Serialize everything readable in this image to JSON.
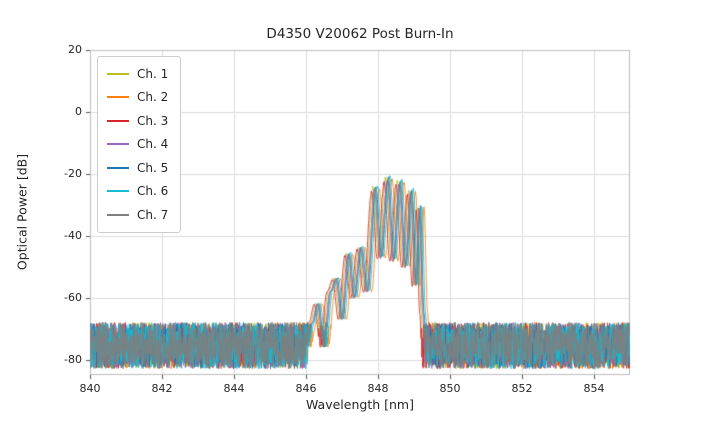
{
  "chart_data": {
    "type": "line",
    "title": "D4350 V20062 Post Burn-In",
    "xlabel": "Wavelength [nm]",
    "ylabel": "Optical Power [dB]",
    "xlim": [
      840,
      855
    ],
    "ylim": [
      -85,
      20
    ],
    "x_ticks": [
      840,
      842,
      844,
      846,
      848,
      850,
      852,
      854
    ],
    "y_ticks": [
      20,
      0,
      -20,
      -40,
      -60,
      -80
    ],
    "grid": true,
    "legend_position": "upper left",
    "noise_floor": {
      "max_dB": -68,
      "min_dB": -83
    },
    "spectrum_envelope": [
      [
        846.0,
        -76
      ],
      [
        846.18,
        -68
      ],
      [
        846.33,
        -62
      ],
      [
        846.5,
        -76
      ],
      [
        846.68,
        -58
      ],
      [
        846.84,
        -54
      ],
      [
        847.0,
        -67
      ],
      [
        847.18,
        -46
      ],
      [
        847.34,
        -60
      ],
      [
        847.52,
        -44
      ],
      [
        847.7,
        -58
      ],
      [
        847.92,
        -25
      ],
      [
        848.08,
        -47
      ],
      [
        848.27,
        -22
      ],
      [
        848.43,
        -48
      ],
      [
        848.6,
        -23
      ],
      [
        848.76,
        -50
      ],
      [
        848.92,
        -26
      ],
      [
        849.05,
        -56
      ],
      [
        849.16,
        -31
      ],
      [
        849.26,
        -65
      ],
      [
        849.33,
        -84
      ]
    ],
    "series": [
      {
        "name": "Ch. 1",
        "color": "#bcbd22",
        "wavelength_offset_nm": -0.06,
        "peak_delta_dB": 0.5
      },
      {
        "name": "Ch. 2",
        "color": "#ff7f0e",
        "wavelength_offset_nm": 0.12,
        "peak_delta_dB": 0.0
      },
      {
        "name": "Ch. 3",
        "color": "#d62728",
        "wavelength_offset_nm": -0.1,
        "peak_delta_dB": -1.0
      },
      {
        "name": "Ch. 4",
        "color": "#9467bd",
        "wavelength_offset_nm": -0.02,
        "peak_delta_dB": -0.5
      },
      {
        "name": "Ch. 5",
        "color": "#1f77b4",
        "wavelength_offset_nm": 0.02,
        "peak_delta_dB": 0.5
      },
      {
        "name": "Ch. 6",
        "color": "#17becf",
        "wavelength_offset_nm": 0.06,
        "peak_delta_dB": 1.0
      },
      {
        "name": "Ch. 7",
        "color": "#7f7f7f",
        "wavelength_offset_nm": 0.0,
        "peak_delta_dB": 0.0
      }
    ]
  }
}
